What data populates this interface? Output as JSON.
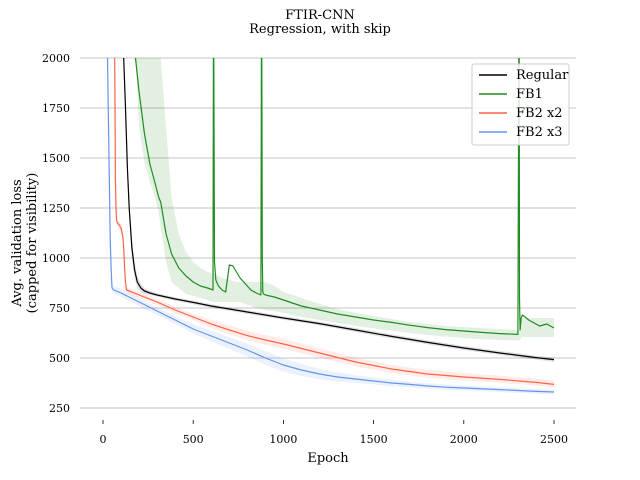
{
  "chart_data": {
    "type": "line",
    "title": "FTIR-CNN",
    "subtitle": "Regression, with skip",
    "xlabel": "Epoch",
    "ylabel_line1": "Avg. validation loss",
    "ylabel_line2": "(capped for visibility)",
    "xlim": [
      -120,
      2620
    ],
    "ylim": [
      150,
      2000
    ],
    "xticks": [
      0,
      500,
      1000,
      1500,
      2000,
      2500
    ],
    "xtick_labels": [
      "0",
      "500",
      "1000",
      "1500",
      "2000",
      "2500"
    ],
    "yticks": [
      250,
      500,
      750,
      1000,
      1250,
      1500,
      1750,
      2000
    ],
    "ytick_labels": [
      "250",
      "500",
      "750",
      "1000",
      "1250",
      "1500",
      "1750",
      "2000"
    ],
    "grid": "horizontal",
    "legend_position": "top-right",
    "series": [
      {
        "name": "Regular",
        "color": "#000000",
        "x": [
          115,
          125,
          135,
          145,
          160,
          175,
          190,
          210,
          230,
          260,
          300,
          400,
          500,
          600,
          700,
          800,
          900,
          1000,
          1200,
          1400,
          1600,
          1800,
          2000,
          2200,
          2400,
          2500
        ],
        "y": [
          2000,
          1750,
          1450,
          1250,
          1050,
          940,
          880,
          850,
          835,
          825,
          815,
          795,
          778,
          760,
          745,
          730,
          715,
          700,
          672,
          640,
          608,
          578,
          550,
          525,
          502,
          492
        ],
        "band_upper": [
          2000,
          1790,
          1500,
          1300,
          1100,
          980,
          910,
          870,
          850,
          835,
          824,
          804,
          787,
          769,
          754,
          739,
          724,
          709,
          681,
          650,
          618,
          588,
          560,
          535,
          512,
          502
        ],
        "band_lower": [
          2000,
          1710,
          1400,
          1200,
          1000,
          900,
          850,
          830,
          820,
          815,
          806,
          786,
          769,
          751,
          736,
          721,
          706,
          691,
          663,
          630,
          598,
          568,
          540,
          515,
          492,
          482
        ]
      },
      {
        "name": "FB1",
        "color": "#228b22",
        "x": [
          180,
          200,
          230,
          260,
          290,
          310,
          320,
          350,
          380,
          420,
          460,
          500,
          540,
          580,
          610,
          612,
          614,
          618,
          625,
          640,
          660,
          680,
          700,
          720,
          740,
          760,
          790,
          820,
          850,
          875,
          878,
          880,
          883,
          886,
          890,
          900,
          950,
          1000,
          1100,
          1200,
          1300,
          1400,
          1500,
          1600,
          1700,
          1800,
          1900,
          2000,
          2100,
          2200,
          2300,
          2305,
          2307,
          2309,
          2312,
          2318,
          2325,
          2340,
          2360,
          2380,
          2400,
          2420,
          2440,
          2460,
          2480,
          2500
        ],
        "y": [
          2000,
          1830,
          1620,
          1470,
          1370,
          1300,
          1280,
          1120,
          1020,
          950,
          910,
          880,
          860,
          850,
          840,
          2000,
          2000,
          980,
          890,
          860,
          840,
          830,
          965,
          960,
          930,
          900,
          870,
          840,
          825,
          815,
          2000,
          2000,
          1000,
          830,
          820,
          815,
          805,
          790,
          760,
          740,
          720,
          705,
          690,
          678,
          664,
          652,
          642,
          635,
          628,
          622,
          618,
          2000,
          2000,
          800,
          640,
          700,
          715,
          705,
          690,
          680,
          670,
          660,
          665,
          670,
          660,
          650
        ],
        "band_upper": [
          2000,
          2000,
          2000,
          2000,
          2000,
          2000,
          2000,
          1650,
          1300,
          1120,
          1030,
          980,
          950,
          930,
          920,
          920,
          920,
          920,
          920,
          910,
          900,
          895,
          890,
          885,
          880,
          880,
          880,
          880,
          880,
          880,
          880,
          880,
          880,
          880,
          880,
          880,
          860,
          830,
          800,
          770,
          745,
          725,
          710,
          695,
          680,
          670,
          660,
          655,
          650,
          645,
          640,
          640,
          640,
          640,
          650,
          690,
          700,
          700,
          700,
          700,
          700,
          700,
          700,
          700,
          700,
          700
        ],
        "band_lower": [
          2000,
          1650,
          1480,
          1380,
          1300,
          1220,
          1150,
          980,
          880,
          850,
          820,
          810,
          800,
          790,
          780,
          780,
          780,
          780,
          780,
          780,
          780,
          780,
          780,
          780,
          780,
          780,
          770,
          760,
          750,
          745,
          745,
          745,
          745,
          745,
          745,
          740,
          735,
          725,
          705,
          690,
          675,
          660,
          648,
          636,
          625,
          615,
          607,
          600,
          594,
          590,
          588,
          588,
          588,
          588,
          590,
          600,
          605,
          605,
          605,
          605,
          605,
          605,
          605,
          605,
          605,
          605
        ]
      },
      {
        "name": "FB2 x2",
        "color": "#ff6347",
        "x": [
          65,
          67,
          69,
          72,
          75,
          80,
          90,
          100,
          110,
          115,
          120,
          125,
          130,
          200,
          300,
          400,
          500,
          600,
          700,
          800,
          900,
          1000,
          1200,
          1400,
          1600,
          1800,
          2000,
          2200,
          2400,
          2500
        ],
        "y": [
          2000,
          1700,
          1400,
          1250,
          1190,
          1175,
          1165,
          1150,
          1110,
          1050,
          950,
          880,
          840,
          815,
          780,
          740,
          705,
          670,
          640,
          612,
          590,
          570,
          525,
          480,
          445,
          420,
          405,
          393,
          378,
          368
        ],
        "band_upper": [
          2000,
          1750,
          1450,
          1280,
          1210,
          1195,
          1185,
          1170,
          1130,
          1070,
          970,
          900,
          855,
          830,
          795,
          755,
          720,
          690,
          662,
          636,
          615,
          596,
          548,
          502,
          465,
          440,
          425,
          412,
          396,
          386
        ],
        "band_lower": [
          2000,
          1650,
          1350,
          1220,
          1170,
          1155,
          1145,
          1130,
          1090,
          1030,
          930,
          860,
          825,
          800,
          765,
          725,
          690,
          650,
          620,
          590,
          567,
          546,
          502,
          458,
          425,
          402,
          388,
          376,
          362,
          352
        ]
      },
      {
        "name": "FB2 x3",
        "color": "#6495ed",
        "x": [
          25,
          30,
          35,
          40,
          45,
          50,
          60,
          100,
          200,
          300,
          400,
          500,
          600,
          700,
          800,
          900,
          1000,
          1100,
          1200,
          1300,
          1400,
          1500,
          1600,
          1700,
          1800,
          1900,
          2000,
          2200,
          2400,
          2500
        ],
        "y": [
          2000,
          1700,
          1400,
          1100,
          950,
          850,
          840,
          825,
          780,
          735,
          690,
          645,
          610,
          575,
          540,
          500,
          465,
          440,
          420,
          405,
          395,
          385,
          375,
          368,
          360,
          354,
          350,
          342,
          333,
          330
        ],
        "band_upper": [
          2000,
          1720,
          1420,
          1120,
          970,
          870,
          860,
          845,
          800,
          755,
          710,
          668,
          636,
          604,
          572,
          534,
          498,
          470,
          446,
          428,
          414,
          402,
          391,
          382,
          374,
          368,
          363,
          354,
          345,
          342
        ],
        "band_lower": [
          2000,
          1680,
          1380,
          1080,
          930,
          830,
          820,
          805,
          760,
          715,
          670,
          622,
          584,
          546,
          508,
          466,
          432,
          410,
          394,
          382,
          376,
          368,
          359,
          354,
          346,
          340,
          337,
          330,
          321,
          318
        ]
      }
    ]
  }
}
